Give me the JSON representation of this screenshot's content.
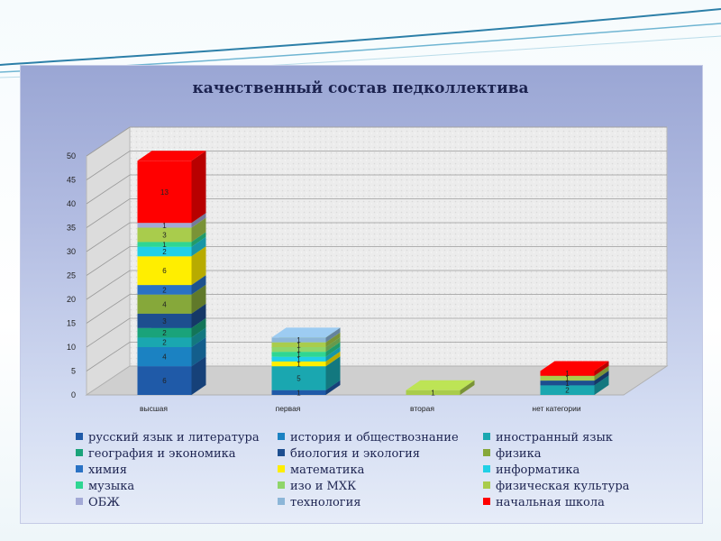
{
  "chart_data": {
    "type": "bar",
    "stacked": true,
    "three_d": true,
    "title": "качественный состав педколлектива",
    "categories": [
      "высшая",
      "первая",
      "вторая",
      "нет категории"
    ],
    "ylim": [
      0,
      50
    ],
    "yticks": [
      "0",
      "5",
      "10",
      "15",
      "20",
      "25",
      "30",
      "35",
      "40",
      "45",
      "50"
    ],
    "grid": true,
    "legend_position": "bottom",
    "series": [
      {
        "name": "русский язык и литература",
        "color": "#1f5aa8",
        "values": [
          6,
          1,
          0,
          0
        ]
      },
      {
        "name": "история и обществознание",
        "color": "#1b82c2",
        "values": [
          4,
          0,
          0,
          0
        ]
      },
      {
        "name": "иностранный язык",
        "color": "#1aa7b0",
        "values": [
          2,
          5,
          0,
          2
        ]
      },
      {
        "name": "география и экономика",
        "color": "#1aa37a",
        "values": [
          2,
          0,
          0,
          0
        ]
      },
      {
        "name": "биология и экология",
        "color": "#1d4e8f",
        "values": [
          3,
          0,
          0,
          1
        ]
      },
      {
        "name": "физика",
        "color": "#86a83a",
        "values": [
          4,
          0,
          0,
          0
        ]
      },
      {
        "name": "химия",
        "color": "#2a72c4",
        "values": [
          2,
          0,
          0,
          0
        ]
      },
      {
        "name": "математика",
        "color": "#ffee00",
        "values": [
          6,
          1,
          0,
          0
        ]
      },
      {
        "name": "информатика",
        "color": "#21d0e6",
        "values": [
          2,
          1,
          0,
          0
        ]
      },
      {
        "name": "музыка",
        "color": "#2fd693",
        "values": [
          1,
          1,
          0,
          0
        ]
      },
      {
        "name": "изо и МХК",
        "color": "#8fd56a",
        "values": [
          0,
          1,
          0,
          0
        ]
      },
      {
        "name": "физическая культура",
        "color": "#a9cc4c",
        "values": [
          3,
          1,
          1,
          1
        ]
      },
      {
        "name": "ОБЖ",
        "color": "#a3a9d6",
        "values": [
          1,
          0,
          0,
          0
        ]
      },
      {
        "name": "технология",
        "color": "#8cb6d8",
        "values": [
          0,
          1,
          0,
          0
        ]
      },
      {
        "name": "начальная школа",
        "color": "#ff0000",
        "values": [
          13,
          0,
          0,
          1
        ]
      }
    ]
  }
}
